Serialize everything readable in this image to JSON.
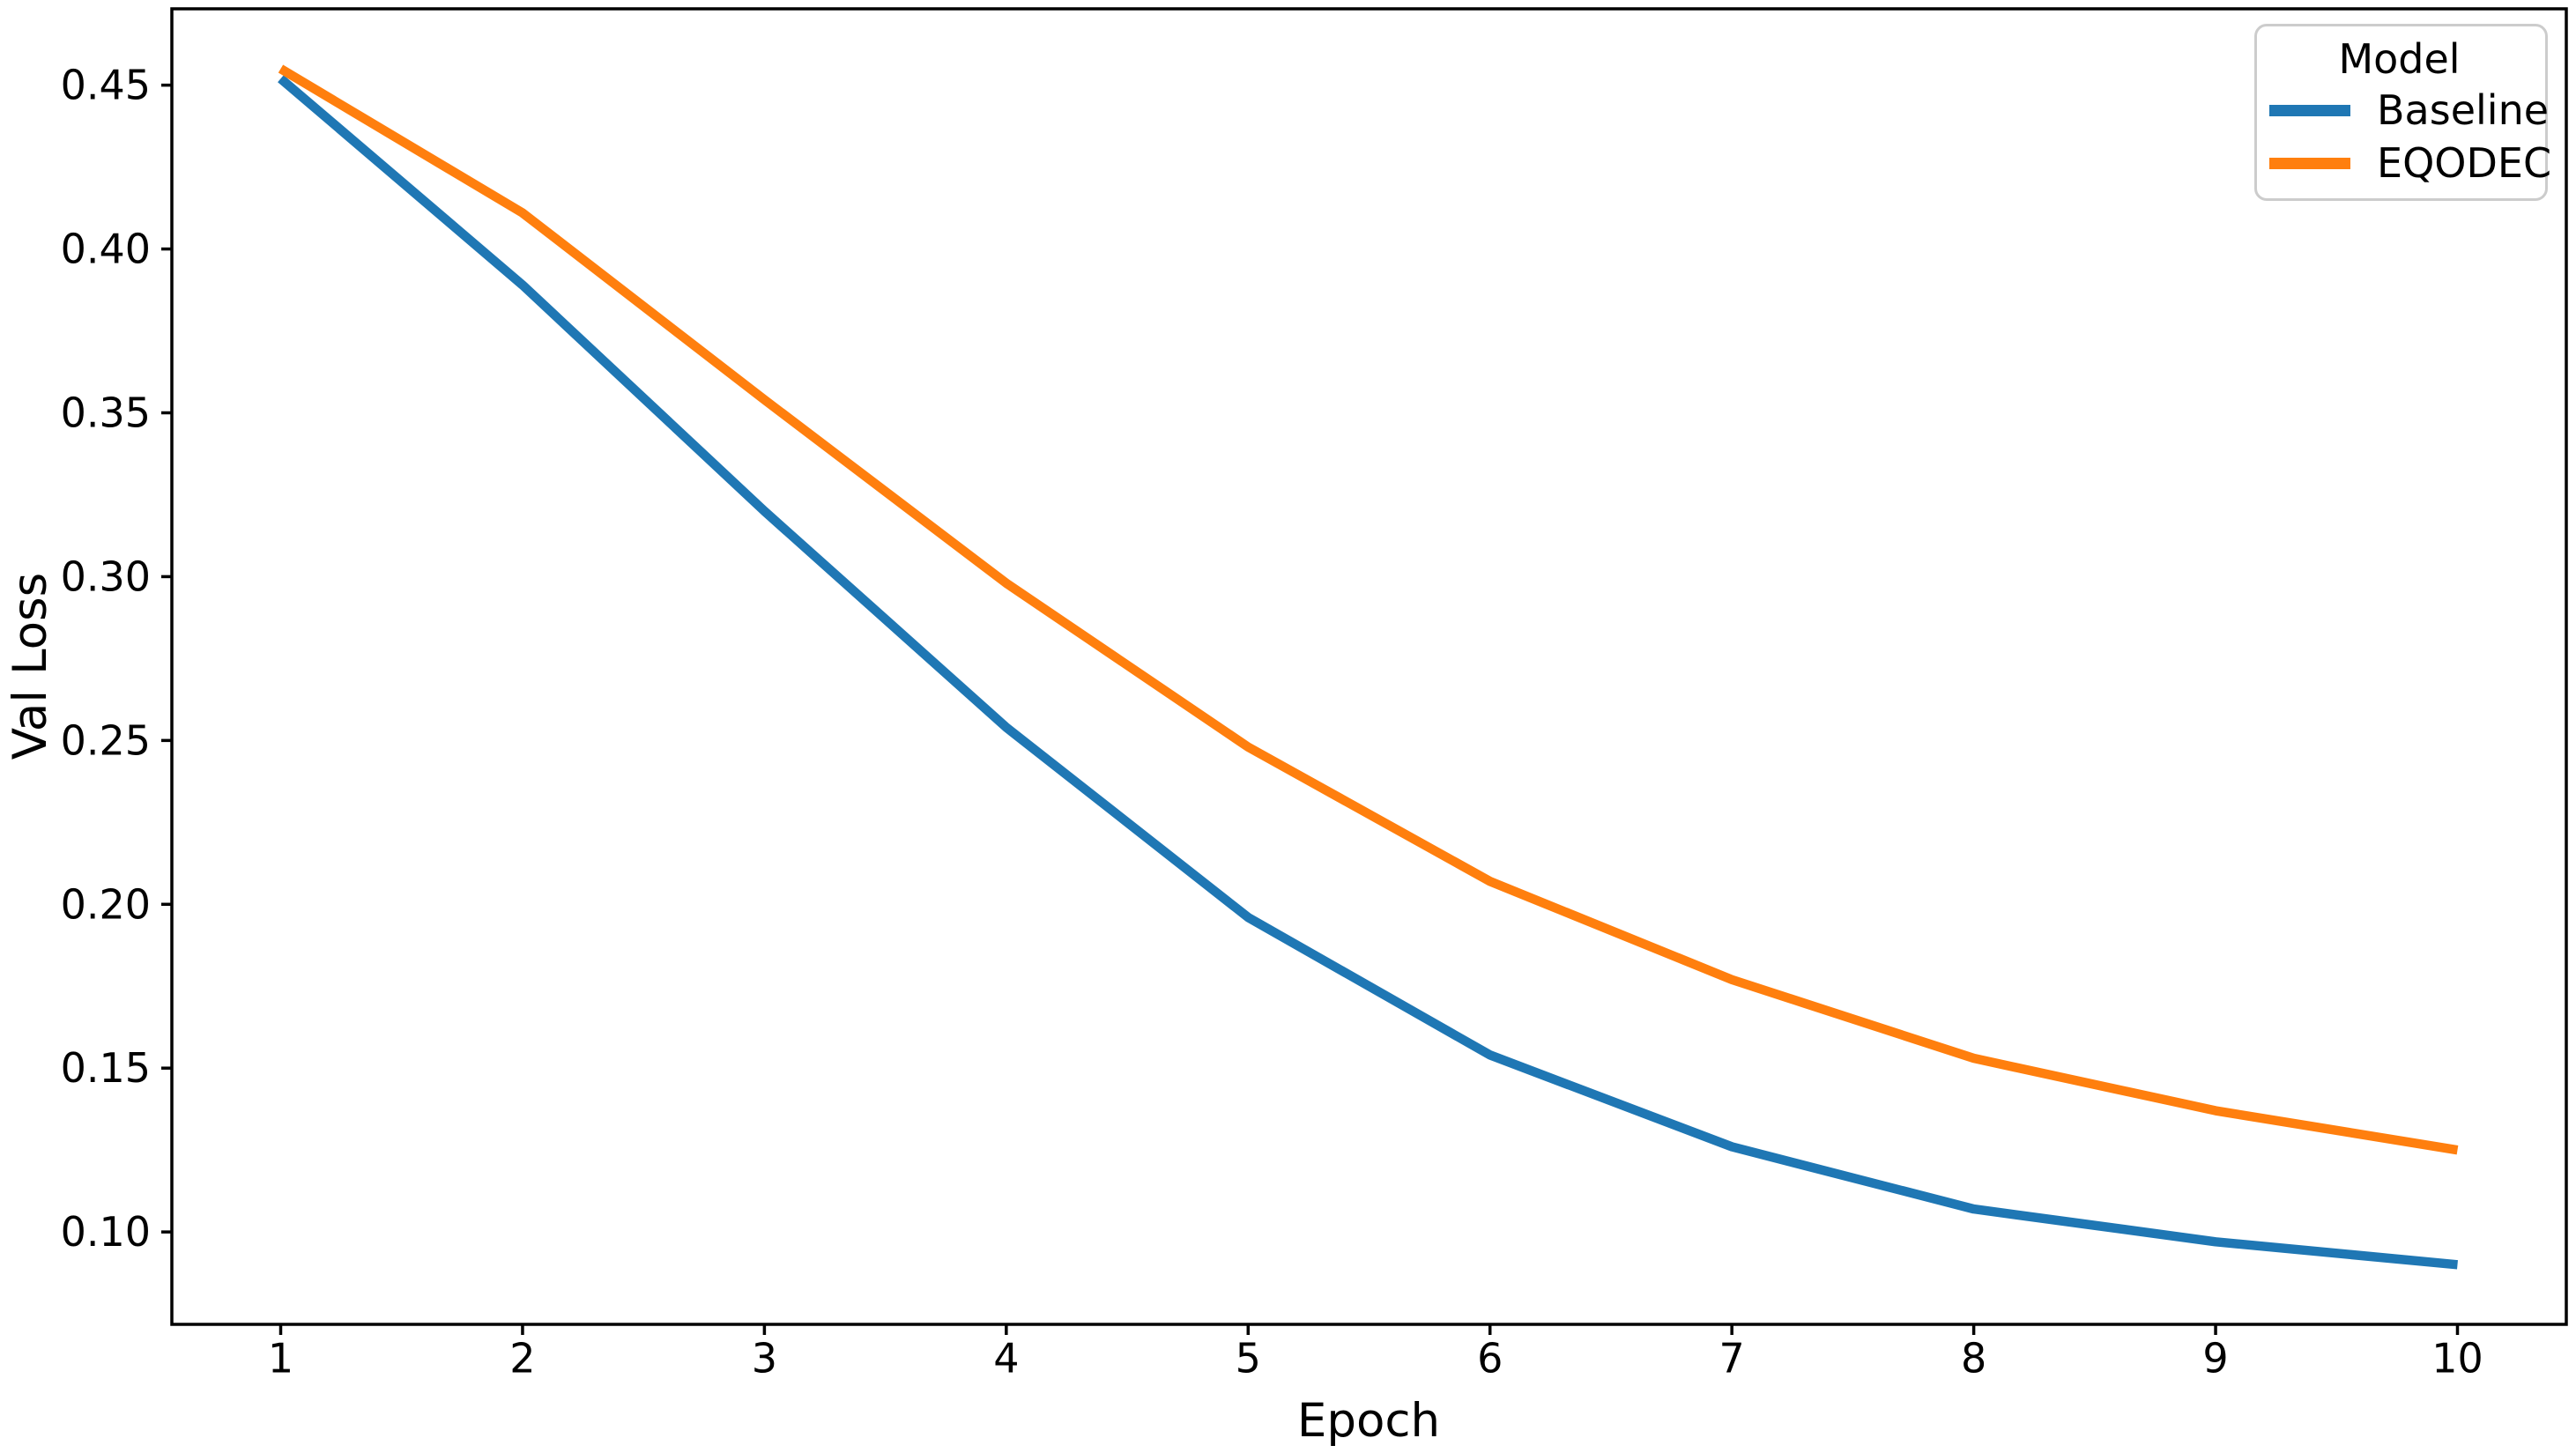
{
  "chart_data": {
    "type": "line",
    "x": [
      1,
      2,
      3,
      4,
      5,
      6,
      7,
      8,
      9,
      10
    ],
    "series": [
      {
        "name": "Baseline",
        "color": "#1f77b4",
        "values": [
          0.452,
          0.389,
          0.32,
          0.254,
          0.196,
          0.154,
          0.126,
          0.107,
          0.097,
          0.09
        ]
      },
      {
        "name": "EQODEC",
        "color": "#ff7f0e",
        "values": [
          0.455,
          0.411,
          0.354,
          0.298,
          0.248,
          0.207,
          0.177,
          0.153,
          0.137,
          0.125
        ]
      }
    ],
    "title": "",
    "xlabel": "Epoch",
    "ylabel": "Val Loss",
    "xlim": [
      0.55,
      10.45
    ],
    "ylim": [
      0.0718,
      0.4733
    ],
    "xticks": [
      1,
      2,
      3,
      4,
      5,
      6,
      7,
      8,
      9,
      10
    ],
    "xtick_labels": [
      "1",
      "2",
      "3",
      "4",
      "5",
      "6",
      "7",
      "8",
      "9",
      "10"
    ],
    "yticks": [
      0.1,
      0.15,
      0.2,
      0.25,
      0.3,
      0.35,
      0.4,
      0.45
    ],
    "ytick_labels": [
      "0.10",
      "0.15",
      "0.20",
      "0.25",
      "0.30",
      "0.35",
      "0.40",
      "0.45"
    ],
    "grid": false,
    "legend": {
      "title": "Model",
      "position": "upper right",
      "entries": [
        {
          "label": "Baseline",
          "color": "#1f77b4"
        },
        {
          "label": "EQODEC",
          "color": "#ff7f0e"
        }
      ]
    }
  }
}
